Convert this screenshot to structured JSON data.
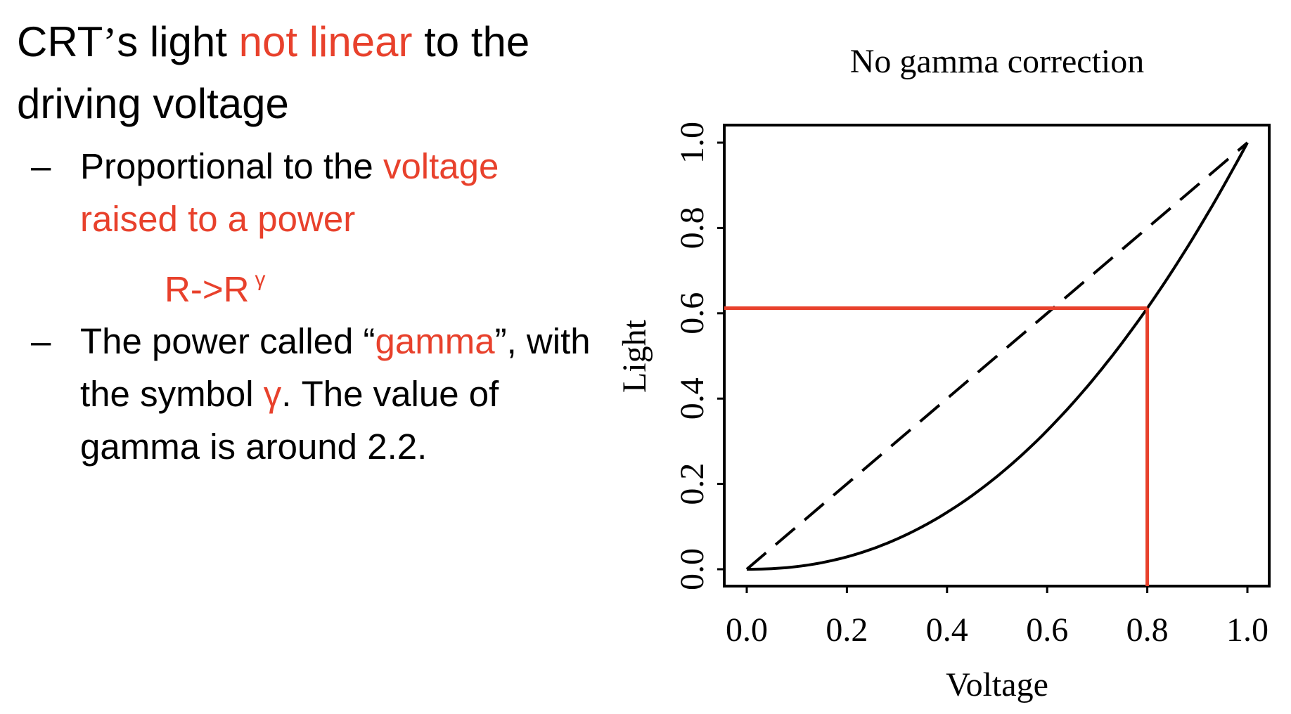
{
  "heading": {
    "part1": "CRT",
    "apostrophe": "’",
    "part2": "s light ",
    "highlight": "not linear",
    "part3": " to the driving voltage"
  },
  "bullet1": {
    "dash": "–",
    "part1": "Proportional to the ",
    "highlight": "voltage raised to a power"
  },
  "formula": {
    "base": "R->R",
    "exponent": "γ"
  },
  "bullet2": {
    "dash": "–",
    "part1": "The power called “",
    "highlight1": "gamma",
    "part2": "”, with the symbol ",
    "highlight2": "γ",
    "part3": ". The value of gamma is around 2.2."
  },
  "colors": {
    "accent": "#e8412c",
    "text": "#000000"
  },
  "chart_data": {
    "type": "line",
    "title": "No gamma correction",
    "xlabel": "Voltage",
    "ylabel": "Light",
    "xlim": [
      0.0,
      1.0
    ],
    "ylim": [
      0.0,
      1.0
    ],
    "xticks": [
      "0.0",
      "0.2",
      "0.4",
      "0.6",
      "0.8",
      "1.0"
    ],
    "yticks": [
      "0.0",
      "0.2",
      "0.4",
      "0.6",
      "0.8",
      "1.0"
    ],
    "grid": false,
    "series": [
      {
        "style": "dashed",
        "x": [
          0.0,
          1.0
        ],
        "y": [
          0.0,
          1.0
        ]
      },
      {
        "style": "solid",
        "gamma": 2.2,
        "x": [
          0.0,
          0.1,
          0.2,
          0.3,
          0.4,
          0.5,
          0.6,
          0.7,
          0.8,
          0.9,
          1.0
        ],
        "y": [
          0.0,
          0.006,
          0.029,
          0.071,
          0.133,
          0.218,
          0.325,
          0.456,
          0.612,
          0.793,
          1.0
        ]
      }
    ],
    "annotation": {
      "color": "#e8412c",
      "x": 0.8,
      "y": 0.612
    }
  }
}
